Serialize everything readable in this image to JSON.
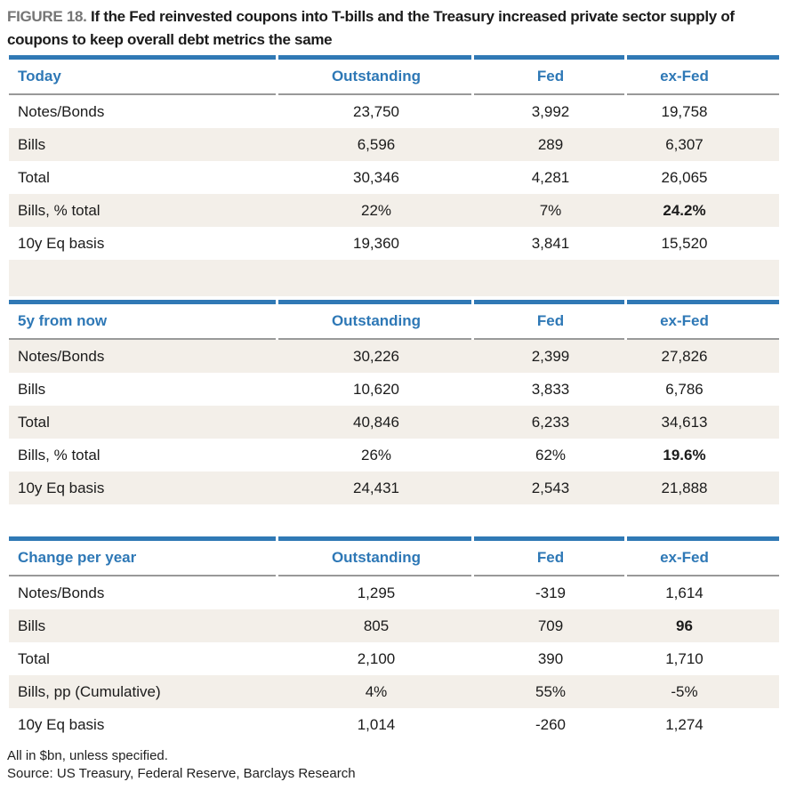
{
  "title": {
    "label": "FIGURE 18.",
    "text": "If the Fed reinvested coupons into T-bills and the Treasury increased private sector supply of coupons to keep overall debt metrics the same"
  },
  "tables": [
    {
      "header": "Today",
      "columns": [
        "Outstanding",
        "Fed",
        "ex-Fed"
      ],
      "rows": [
        {
          "label": "Notes/Bonds",
          "values": [
            "23,750",
            "3,992",
            "19,758"
          ]
        },
        {
          "label": "Bills",
          "values": [
            "6,596",
            "289",
            "6,307"
          ]
        },
        {
          "label": "Total",
          "values": [
            "30,346",
            "4,281",
            "26,065"
          ]
        },
        {
          "label": "Bills, % total",
          "values": [
            "22%",
            "7%",
            "24.2%"
          ]
        },
        {
          "label": "10y Eq basis",
          "values": [
            "19,360",
            "3,841",
            "15,520"
          ]
        }
      ]
    },
    {
      "header": "5y from now",
      "columns": [
        "Outstanding",
        "Fed",
        "ex-Fed"
      ],
      "rows": [
        {
          "label": "Notes/Bonds",
          "values": [
            "30,226",
            "2,399",
            "27,826"
          ]
        },
        {
          "label": "Bills",
          "values": [
            "10,620",
            "3,833",
            "6,786"
          ]
        },
        {
          "label": "Total",
          "values": [
            "40,846",
            "6,233",
            "34,613"
          ]
        },
        {
          "label": "Bills, % total",
          "values": [
            "26%",
            "62%",
            "19.6%"
          ]
        },
        {
          "label": "10y Eq basis",
          "values": [
            "24,431",
            "2,543",
            "21,888"
          ]
        }
      ]
    },
    {
      "header": "Change per year",
      "columns": [
        "Outstanding",
        "Fed",
        "ex-Fed"
      ],
      "rows": [
        {
          "label": "Notes/Bonds",
          "values": [
            "1,295",
            "-319",
            "1,614"
          ]
        },
        {
          "label": "Bills",
          "values": [
            "805",
            "709",
            "96"
          ]
        },
        {
          "label": "Total",
          "values": [
            "2,100",
            "390",
            "1,710"
          ]
        },
        {
          "label": "Bills, pp (Cumulative)",
          "values": [
            "4%",
            "55%",
            "-5%"
          ]
        },
        {
          "label": "10y Eq basis",
          "values": [
            "1,014",
            "-260",
            "1,274"
          ]
        }
      ]
    }
  ],
  "footnotes": [
    "All in $bn, unless specified.",
    "Source: US Treasury, Federal Reserve, Barclays Research"
  ],
  "colors": {
    "accent_blue": "#3079b5",
    "header_text_blue": "#2e78b6",
    "row_stripe_beige": "#f3efe9",
    "header_line_gray": "#999999",
    "figure_label_gray": "#757575"
  }
}
